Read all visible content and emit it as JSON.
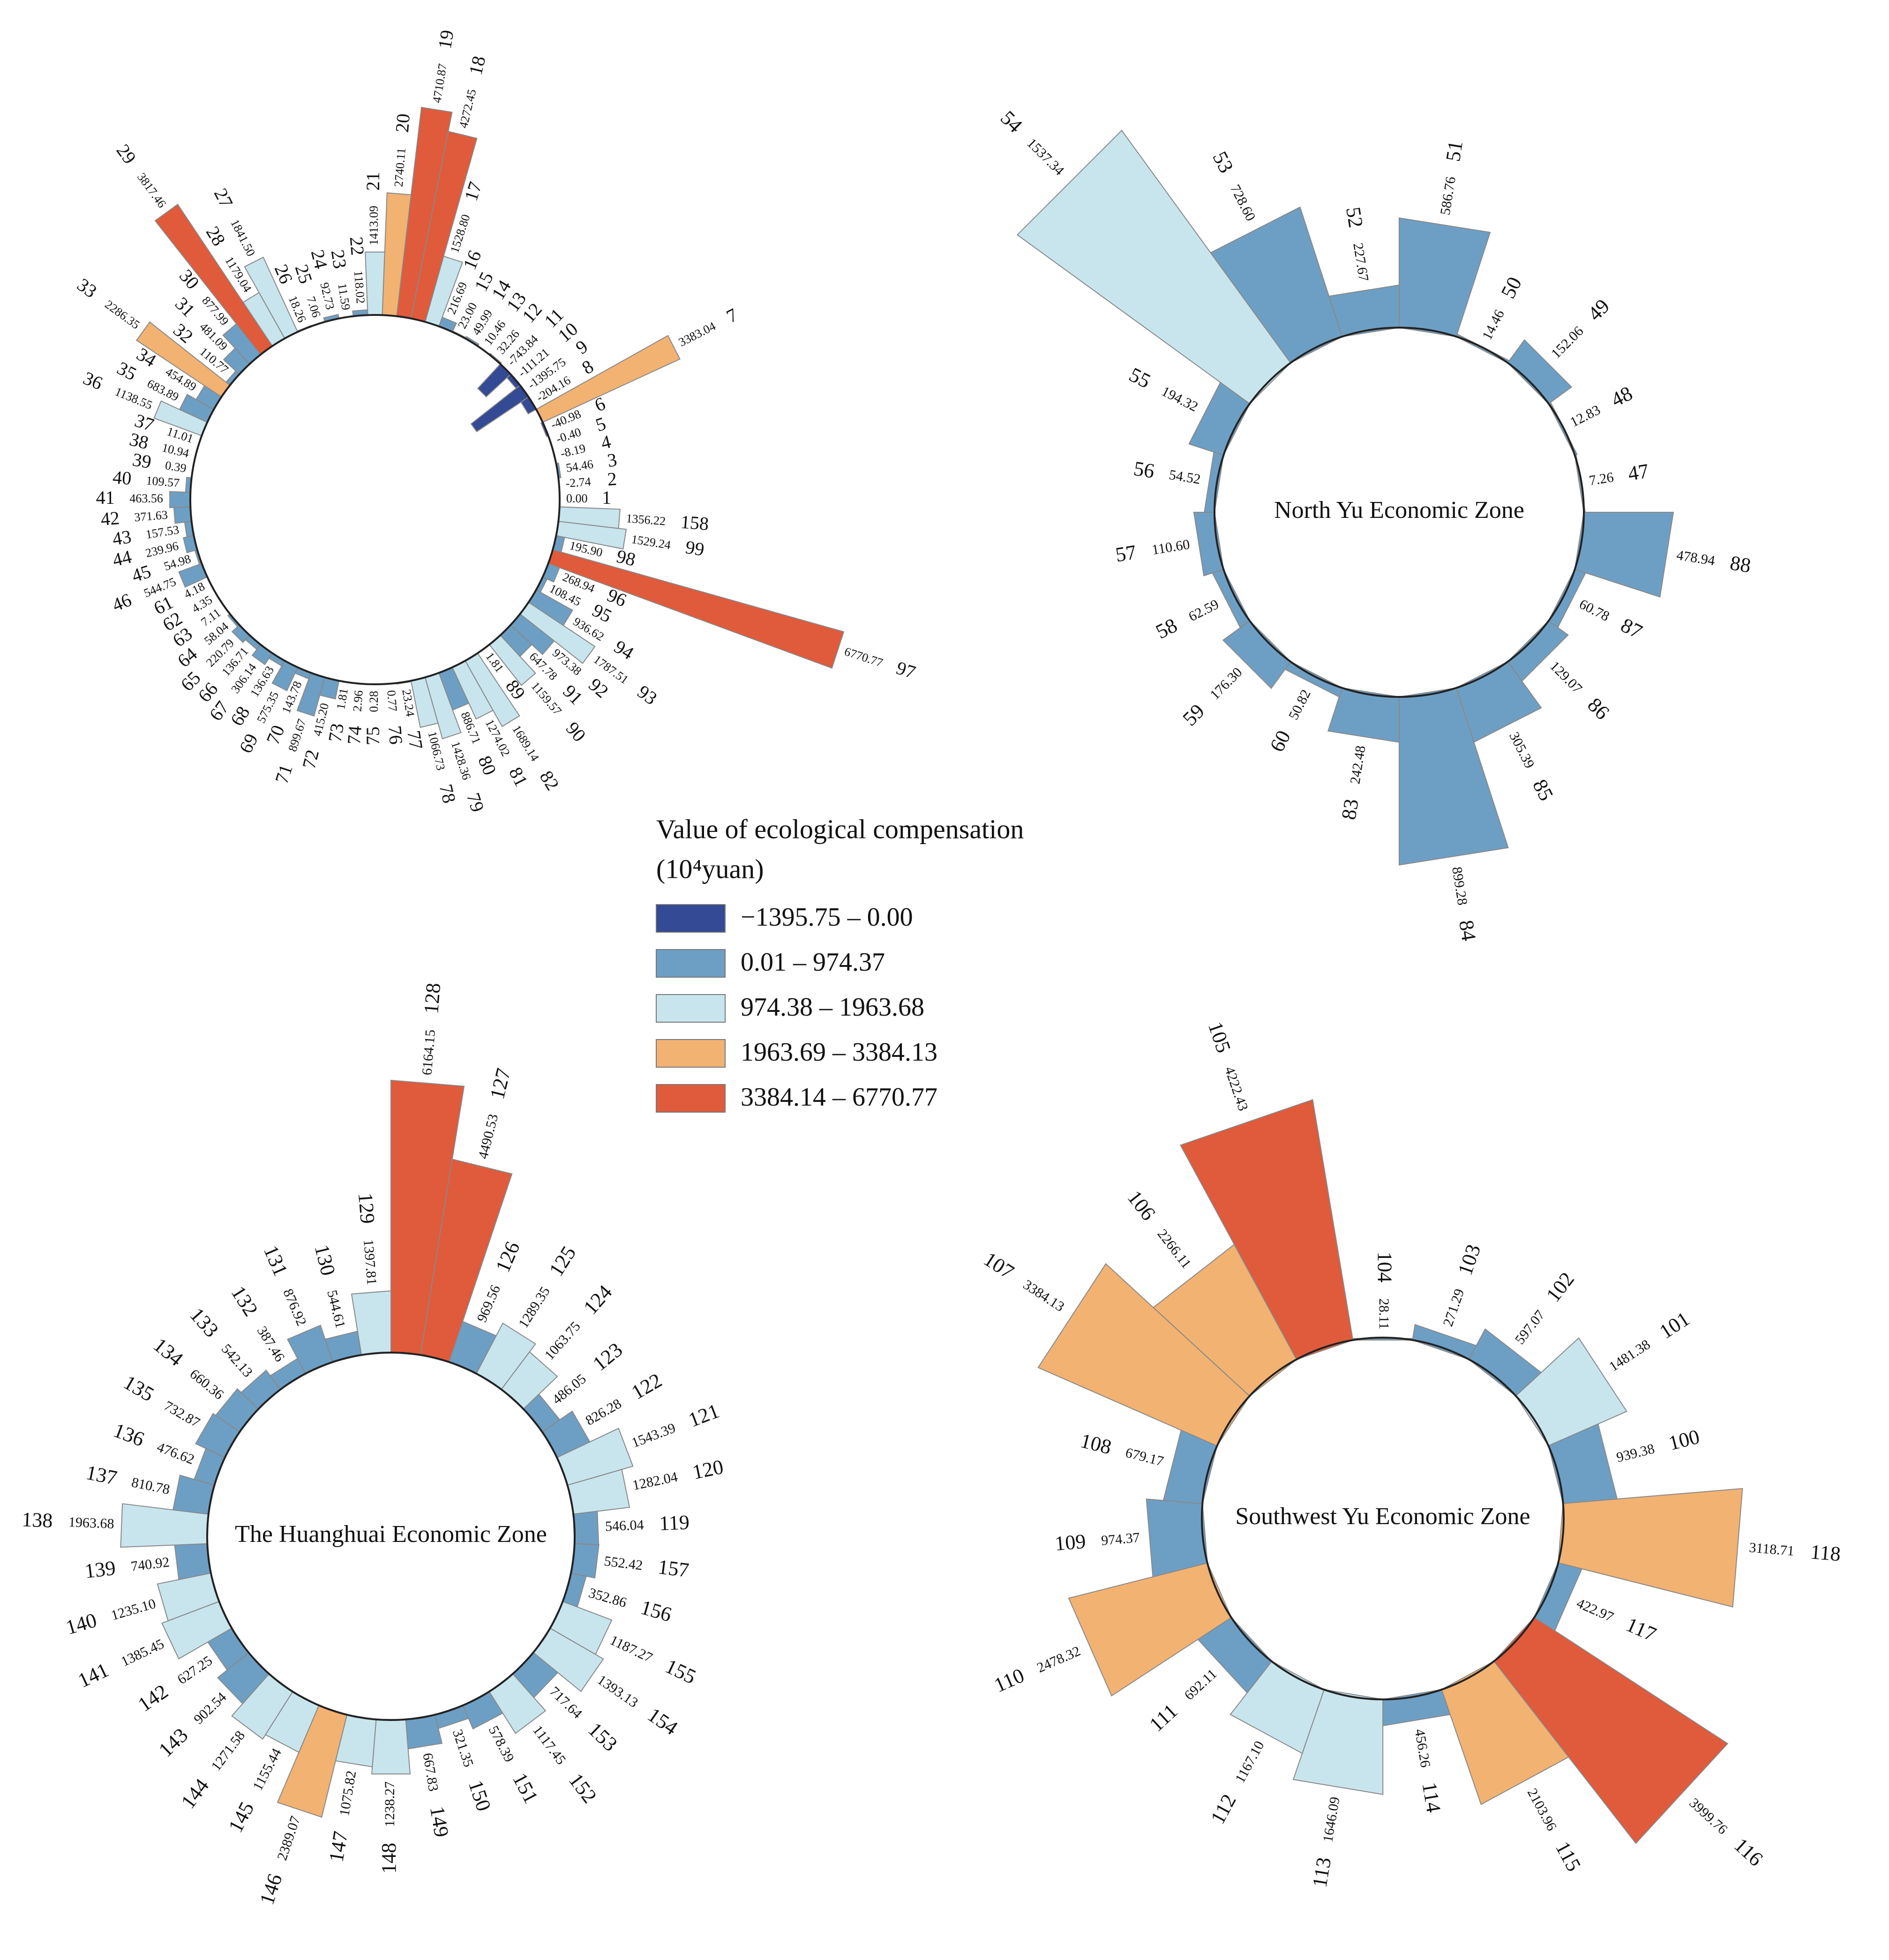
{
  "chart_data": [
    {
      "type": "polar-bar",
      "categories": [
        "1",
        "2",
        "3",
        "4",
        "5",
        "6",
        "7",
        "8",
        "9",
        "10",
        "11",
        "12",
        "13",
        "14",
        "15",
        "16",
        "17",
        "18",
        "19",
        "20",
        "21",
        "22",
        "23",
        "24",
        "25",
        "26",
        "27",
        "28",
        "29",
        "30",
        "31",
        "32",
        "33",
        "34",
        "35",
        "36",
        "37",
        "38",
        "39",
        "40",
        "41",
        "42",
        "43",
        "44",
        "45",
        "46",
        "61",
        "62",
        "63",
        "64",
        "65",
        "66",
        "67",
        "68",
        "69",
        "70",
        "71",
        "72",
        "73",
        "74",
        "75",
        "76",
        "77",
        "78",
        "79",
        "80",
        "81",
        "82",
        "89",
        "90",
        "91",
        "92",
        "93",
        "94",
        "95",
        "96",
        "97",
        "98",
        "99",
        "158"
      ],
      "values": [
        0.0,
        -2.74,
        54.46,
        -8.19,
        -0.4,
        -40.98,
        3383.04,
        -204.16,
        -1395.75,
        -111.21,
        -743.84,
        32.26,
        10.46,
        49.99,
        23.0,
        216.69,
        1528.8,
        4272.45,
        4710.87,
        2740.11,
        1413.09,
        118.02,
        11.59,
        92.73,
        7.06,
        18.26,
        1841.5,
        1179.04,
        3817.46,
        877.99,
        481.09,
        110.77,
        2286.35,
        454.89,
        683.89,
        1138.55,
        11.01,
        10.94,
        0.39,
        109.57,
        463.56,
        371.63,
        157.53,
        239.96,
        54.98,
        544.75,
        4.18,
        4.35,
        7.11,
        58.04,
        220.79,
        136.71,
        306.14,
        136.63,
        575.35,
        143.78,
        899.67,
        415.2,
        1.81,
        2.96,
        0.28,
        0.77,
        23.24,
        1066.73,
        1428.36,
        886.71,
        1274.02,
        1689.14,
        1.81,
        1159.57,
        647.78,
        973.38,
        1787.51,
        936.62,
        108.45,
        268.94,
        6770.77,
        195.9,
        1529.24,
        1356.22
      ],
      "value_labels": [
        "0.00",
        "-2.74",
        "54.46",
        "-8.19",
        "-0.40",
        "-40.98",
        "3383.04",
        "-204.16",
        "-1395.75",
        "-111.21",
        "-743.84",
        "32.26",
        "10.46",
        "49.99",
        "23.00",
        "216.69",
        "1528.80",
        "4272.45",
        "4710.87",
        "2740.11",
        "1413.09",
        "118.02",
        "11.59",
        "92.73",
        "7.06",
        "18.26",
        "1841.50",
        "1179.04",
        "3817.46",
        "877.99",
        "481.09",
        "110.77",
        "2286.35",
        "454.89",
        "683.89",
        "1138.55",
        "11.01",
        "10.94",
        "0.39",
        "109.57",
        "463.56",
        "371.63",
        "157.53",
        "239.96",
        "54.98",
        "544.75",
        "4.18",
        "4.35",
        "7.11",
        "58.04",
        "220.79",
        "136.71",
        "306.14",
        "136.63",
        "575.35",
        "143.78",
        "899.67",
        "415.20",
        "1.81",
        "2.96",
        "0.28",
        "0.77",
        "23.24",
        "1066.73",
        "1428.36",
        "886.71",
        "1274.02",
        "1689.14",
        "1.81",
        "1159.57",
        "647.78",
        "973.38",
        "1787.51",
        "936.62",
        "108.45",
        "268.94",
        "6770.77",
        "195.90",
        "1529.24",
        "1356.22"
      ]
    },
    {
      "type": "polar-bar",
      "title": "North Yu Economic Zone",
      "categories": [
        "51",
        "50",
        "49",
        "48",
        "47",
        "88",
        "87",
        "86",
        "85",
        "84",
        "83",
        "60",
        "59",
        "58",
        "57",
        "56",
        "55",
        "54",
        "53",
        "52"
      ],
      "values": [
        586.76,
        14.46,
        152.06,
        12.83,
        7.26,
        478.94,
        60.78,
        129.07,
        305.39,
        899.28,
        242.48,
        50.82,
        176.3,
        62.59,
        110.6,
        54.52,
        194.32,
        1537.34,
        728.6,
        227.67
      ],
      "value_labels": [
        "586.76",
        "14.46",
        "152.06",
        "12.83",
        "7.26",
        "478.94",
        "60.78",
        "129.07",
        "305.39",
        "899.28",
        "242.48",
        "50.82",
        "176.30",
        "62.59",
        "110.60",
        "54.52",
        "194.32",
        "1537.34",
        "728.60",
        "227.67"
      ]
    },
    {
      "type": "polar-bar",
      "title": "The Huanghuai Economic Zone",
      "categories": [
        "128",
        "127",
        "126",
        "125",
        "124",
        "123",
        "122",
        "121",
        "120",
        "119",
        "157",
        "156",
        "155",
        "154",
        "153",
        "152",
        "151",
        "150",
        "149",
        "148",
        "147",
        "146",
        "145",
        "144",
        "143",
        "142",
        "141",
        "140",
        "139",
        "138",
        "137",
        "136",
        "135",
        "134",
        "133",
        "132",
        "131",
        "130",
        "129"
      ],
      "values": [
        6164.15,
        4490.53,
        969.56,
        1289.35,
        1063.75,
        486.05,
        826.28,
        1543.39,
        1282.04,
        546.04,
        552.42,
        352.86,
        1187.27,
        1393.13,
        717.64,
        1117.45,
        578.39,
        321.35,
        667.83,
        1238.27,
        1075.82,
        2389.07,
        1155.44,
        1271.58,
        902.54,
        627.25,
        1385.45,
        1235.1,
        740.92,
        1963.68,
        810.78,
        476.62,
        732.87,
        660.36,
        542.13,
        387.46,
        876.92,
        544.61,
        1397.81
      ],
      "value_labels": [
        "6164.15",
        "4490.53",
        "969.56",
        "1289.35",
        "1063.75",
        "486.05",
        "826.28",
        "1543.39",
        "1282.04",
        "546.04",
        "552.42",
        "352.86",
        "1187.27",
        "1393.13",
        "717.64",
        "1117.45",
        "578.39",
        "321.35",
        "667.83",
        "1238.27",
        "1075.82",
        "2389.07",
        "1155.44",
        "1271.58",
        "902.54",
        "627.25",
        "1385.45",
        "1235.10",
        "740.92",
        "1963.68",
        "810.78",
        "476.62",
        "732.87",
        "660.36",
        "542.13",
        "387.46",
        "876.92",
        "544.61",
        "1397.81"
      ]
    },
    {
      "type": "polar-bar",
      "title": "Southwest Yu Economic Zone",
      "categories": [
        "104",
        "103",
        "102",
        "101",
        "100",
        "118",
        "117",
        "116",
        "115",
        "114",
        "113",
        "112",
        "111",
        "110",
        "109",
        "108",
        "107",
        "106",
        "105"
      ],
      "values": [
        28.11,
        271.29,
        597.07,
        1481.38,
        939.38,
        3118.71,
        422.97,
        3999.76,
        2103.96,
        456.26,
        1646.09,
        1167.1,
        692.11,
        2478.32,
        974.37,
        679.17,
        3384.13,
        2266.11,
        4222.43
      ],
      "value_labels": [
        "28.11",
        "271.29",
        "597.07",
        "1481.38",
        "939.38",
        "3118.71",
        "422.97",
        "3999.76",
        "2103.96",
        "456.26",
        "1646.09",
        "1167.10",
        "692.11",
        "2478.32",
        "974.37",
        "679.17",
        "3384.13",
        "2266.11",
        "4222.43"
      ]
    }
  ],
  "legend": {
    "title": "Value of ecological compensation",
    "unit": "(10⁴yuan)",
    "items": [
      {
        "label": "−1395.75 – 0.00",
        "color": "#344a94",
        "min": -1395.75,
        "max": 0.0
      },
      {
        "label": "0.01 –  974.37",
        "color": "#6d9fc5",
        "min": 0.01,
        "max": 974.37
      },
      {
        "label": "974.38 – 1963.68",
        "color": "#c8e5ee",
        "min": 974.38,
        "max": 1963.68
      },
      {
        "label": "1963.69 – 3384.13",
        "color": "#f2b272",
        "min": 1963.69,
        "max": 3384.13
      },
      {
        "label": "3384.14 – 6770.77",
        "color": "#e05a3c",
        "min": 3384.14,
        "max": 6770.77
      }
    ]
  }
}
